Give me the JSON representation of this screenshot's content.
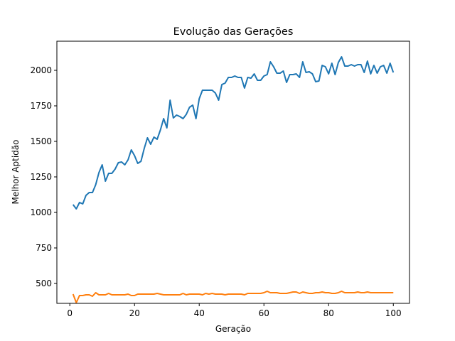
{
  "chart_data": {
    "type": "line",
    "title": "Evolução das Gerações",
    "xlabel": "Geração",
    "ylabel": "Melhor Aptidão",
    "xlim": [
      -4,
      105
    ],
    "ylim": [
      360,
      2205
    ],
    "xticks": [
      0,
      20,
      40,
      60,
      80,
      100
    ],
    "yticks": [
      500,
      750,
      1000,
      1250,
      1500,
      1750,
      2000
    ],
    "xtick_labels": [
      "0",
      "20",
      "40",
      "60",
      "80",
      "100"
    ],
    "ytick_labels": [
      "500",
      "750",
      "1000",
      "1250",
      "1500",
      "1750",
      "2000"
    ],
    "grid": false,
    "legend": "none",
    "x": [
      1,
      2,
      3,
      4,
      5,
      6,
      7,
      8,
      9,
      10,
      11,
      12,
      13,
      14,
      15,
      16,
      17,
      18,
      19,
      20,
      21,
      22,
      23,
      24,
      25,
      26,
      27,
      28,
      29,
      30,
      31,
      32,
      33,
      34,
      35,
      36,
      37,
      38,
      39,
      40,
      41,
      42,
      43,
      44,
      45,
      46,
      47,
      48,
      49,
      50,
      51,
      52,
      53,
      54,
      55,
      56,
      57,
      58,
      59,
      60,
      61,
      62,
      63,
      64,
      65,
      66,
      67,
      68,
      69,
      70,
      71,
      72,
      73,
      74,
      75,
      76,
      77,
      78,
      79,
      80,
      81,
      82,
      83,
      84,
      85,
      86,
      87,
      88,
      89,
      90,
      91,
      92,
      93,
      94,
      95,
      96,
      97,
      98,
      99,
      100
    ],
    "series": [
      {
        "color": "#1f77b4",
        "values": [
          1055,
          1025,
          1070,
          1060,
          1120,
          1140,
          1140,
          1195,
          1280,
          1335,
          1220,
          1275,
          1275,
          1305,
          1350,
          1355,
          1335,
          1370,
          1440,
          1400,
          1345,
          1360,
          1450,
          1525,
          1480,
          1530,
          1515,
          1580,
          1660,
          1595,
          1790,
          1665,
          1685,
          1675,
          1660,
          1690,
          1740,
          1755,
          1660,
          1800,
          1860,
          1860,
          1860,
          1860,
          1840,
          1790,
          1900,
          1910,
          1950,
          1950,
          1960,
          1950,
          1950,
          1875,
          1950,
          1945,
          1975,
          1930,
          1930,
          1960,
          1970,
          2060,
          2025,
          1980,
          1980,
          1995,
          1915,
          1970,
          1970,
          1975,
          1950,
          2060,
          1985,
          1990,
          1975,
          1920,
          1925,
          2035,
          2025,
          1975,
          2050,
          1970,
          2055,
          2095,
          2030,
          2030,
          2040,
          2030,
          2040,
          2040,
          1985,
          2065,
          1975,
          2035,
          1980,
          2025,
          2035,
          1980,
          2050,
          1985
        ]
      },
      {
        "color": "#ff7f0e",
        "values": [
          425,
          365,
          415,
          415,
          420,
          420,
          410,
          435,
          420,
          420,
          420,
          430,
          420,
          420,
          420,
          420,
          420,
          425,
          415,
          415,
          425,
          425,
          425,
          425,
          425,
          425,
          430,
          425,
          420,
          420,
          420,
          420,
          420,
          420,
          430,
          420,
          425,
          425,
          425,
          425,
          420,
          430,
          425,
          430,
          425,
          425,
          425,
          420,
          425,
          425,
          425,
          425,
          425,
          420,
          430,
          430,
          430,
          430,
          430,
          435,
          445,
          435,
          435,
          435,
          430,
          430,
          430,
          435,
          440,
          440,
          430,
          440,
          435,
          430,
          430,
          435,
          435,
          440,
          435,
          435,
          430,
          430,
          435,
          445,
          435,
          435,
          435,
          435,
          440,
          435,
          435,
          440,
          435,
          435,
          435,
          435,
          435,
          435,
          435,
          435
        ]
      }
    ]
  }
}
